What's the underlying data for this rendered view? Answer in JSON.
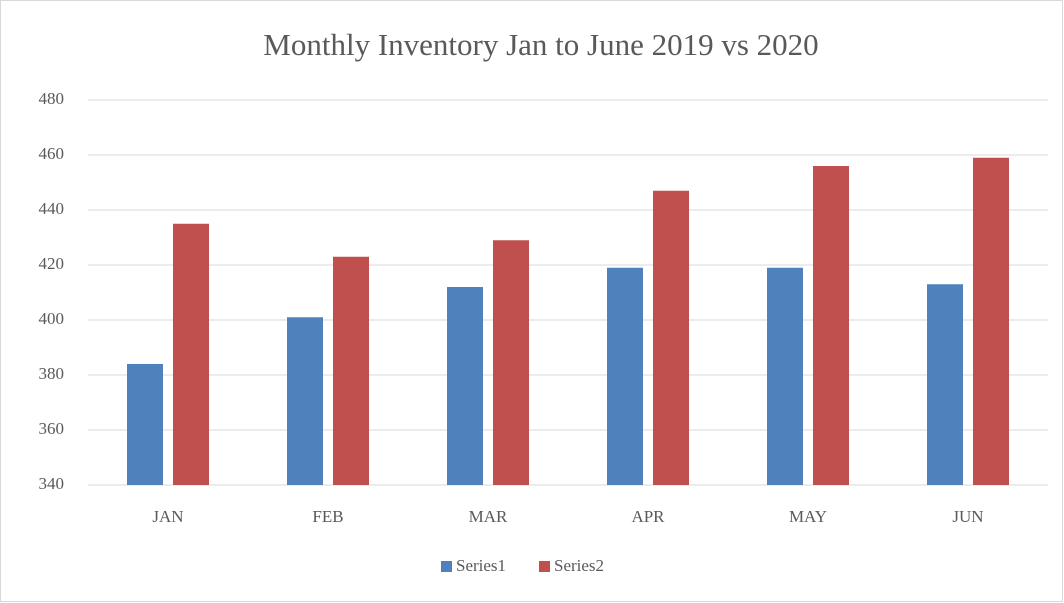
{
  "chart_data": {
    "type": "bar",
    "title": "Monthly Inventory Jan to June 2019 vs 2020",
    "categories": [
      "JAN",
      "FEB",
      "MAR",
      "APR",
      "MAY",
      "JUN"
    ],
    "series": [
      {
        "name": "Series1",
        "color": "#4f81bd",
        "values": [
          384,
          401,
          412,
          419,
          419,
          413
        ]
      },
      {
        "name": "Series2",
        "color": "#c0504d",
        "values": [
          435,
          423,
          429,
          447,
          456,
          459
        ]
      }
    ],
    "ylim": [
      340,
      480
    ],
    "yticks": [
      340,
      360,
      380,
      400,
      420,
      440,
      460,
      480
    ],
    "grid": true,
    "legend": "bottom"
  }
}
